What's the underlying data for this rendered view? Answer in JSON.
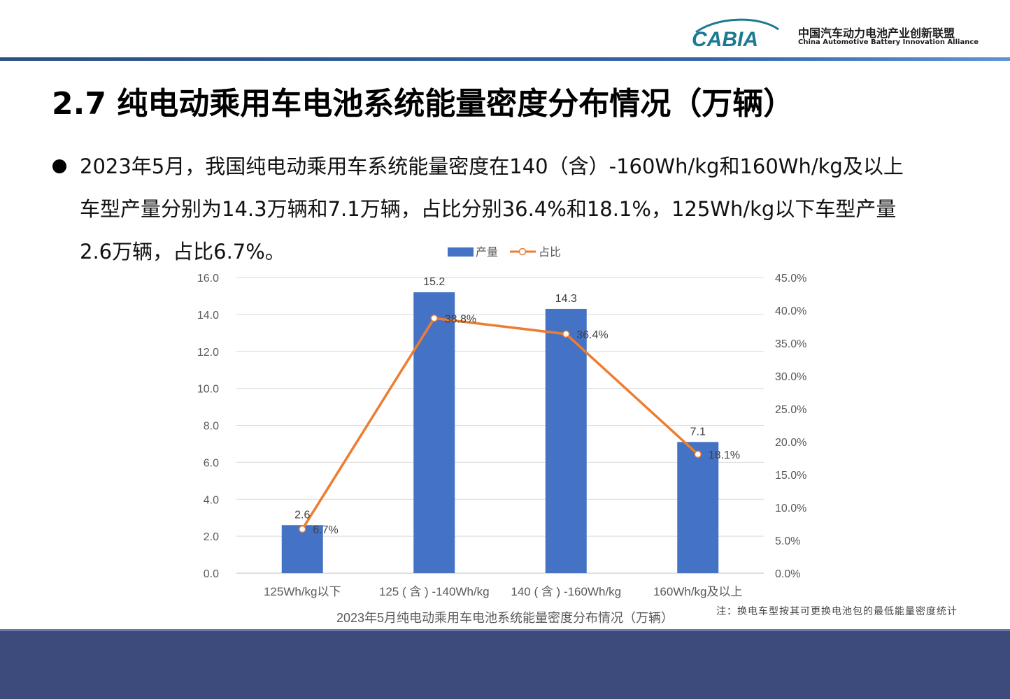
{
  "header": {
    "logo_mark": "CABIA",
    "org_cn": "中国汽车动力电池产业创新联盟",
    "org_en": "China Automotive Battery Innovation Alliance"
  },
  "title": "2.7 纯电动乘用车电池系统能量密度分布情况（万辆）",
  "paragraph": {
    "line1": "2023年5月，我国纯电动乘用车系统能量密度在140（含）-160Wh/kg和160Wh/kg及以上",
    "line2": "车型产量分别为14.3万辆和7.1万辆，占比分别36.4%和18.1%，125Wh/kg以下车型产量",
    "line3": "2.6万辆，占比6.7%。"
  },
  "note": "注：换电车型按其可更换电池包的最低能量密度统计",
  "colors": {
    "bar": "#4472c4",
    "line": "#ed7d31",
    "footer": "#3d4a7c"
  },
  "chart_data": {
    "type": "bar",
    "title": "2023年5月纯电动乘用车电池系统能量密度分布情况（万辆）",
    "categories": [
      "125Wh/kg以下",
      "125 ( 含 ) -140Wh/kg",
      "140 ( 含 ) -160Wh/kg",
      "160Wh/kg及以上"
    ],
    "series": [
      {
        "name": "产量",
        "type": "bar",
        "axis": "left",
        "values": [
          2.6,
          15.2,
          14.3,
          7.1
        ],
        "labels": [
          "2.6",
          "15.2",
          "14.3",
          "7.1"
        ]
      },
      {
        "name": "占比",
        "type": "line",
        "axis": "right",
        "values": [
          6.7,
          38.8,
          36.4,
          18.1
        ],
        "labels": [
          "6.7%",
          "38.8%",
          "36.4%",
          "18.1%"
        ]
      }
    ],
    "left_axis": {
      "ylim": [
        0,
        16
      ],
      "ticks": [
        "0.0",
        "2.0",
        "4.0",
        "6.0",
        "8.0",
        "10.0",
        "12.0",
        "14.0",
        "16.0"
      ]
    },
    "right_axis": {
      "ylim": [
        0,
        45
      ],
      "ticks": [
        "0.0%",
        "5.0%",
        "10.0%",
        "15.0%",
        "20.0%",
        "25.0%",
        "30.0%",
        "35.0%",
        "40.0%",
        "45.0%"
      ]
    },
    "legend_position": "top",
    "grid": true
  }
}
